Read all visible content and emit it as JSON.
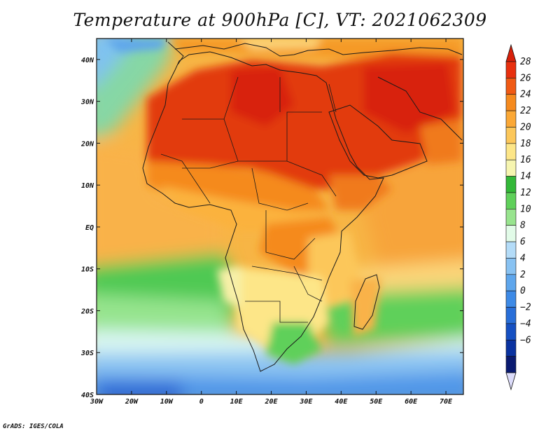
{
  "title": "Temperature at 900hPa [C], VT: 2021062309",
  "credit": "GrADS: IGES/COLA",
  "map": {
    "lon_range": [
      -30,
      75
    ],
    "lat_range": [
      -40,
      45
    ],
    "lon_ticks": [
      {
        "value": -30,
        "label": "30W"
      },
      {
        "value": -20,
        "label": "20W"
      },
      {
        "value": -10,
        "label": "10W"
      },
      {
        "value": 0,
        "label": "0"
      },
      {
        "value": 10,
        "label": "10E"
      },
      {
        "value": 20,
        "label": "20E"
      },
      {
        "value": 30,
        "label": "30E"
      },
      {
        "value": 40,
        "label": "40E"
      },
      {
        "value": 50,
        "label": "50E"
      },
      {
        "value": 60,
        "label": "60E"
      },
      {
        "value": 70,
        "label": "70E"
      }
    ],
    "lat_ticks": [
      {
        "value": 40,
        "label": "40N"
      },
      {
        "value": 30,
        "label": "30N"
      },
      {
        "value": 20,
        "label": "20N"
      },
      {
        "value": 10,
        "label": "10N"
      },
      {
        "value": 0,
        "label": "EQ"
      },
      {
        "value": -10,
        "label": "10S"
      },
      {
        "value": -20,
        "label": "20S"
      },
      {
        "value": -30,
        "label": "30S"
      },
      {
        "value": -40,
        "label": "40S"
      }
    ]
  },
  "colorbar": {
    "labels": [
      "28",
      "26",
      "24",
      "22",
      "20",
      "18",
      "16",
      "14",
      "12",
      "10",
      "8",
      "6",
      "4",
      "2",
      "0",
      "−2",
      "−4",
      "−6"
    ],
    "colors": [
      "#e8300e",
      "#f05a14",
      "#f58a1e",
      "#fba836",
      "#fcc75a",
      "#fde688",
      "#f6f5b0",
      "#33b838",
      "#5fd05a",
      "#98e48e",
      "#e2fbe8",
      "#b4dcf8",
      "#88c2f2",
      "#5ea6ec",
      "#3d8ae6",
      "#286ed8",
      "#1550c2",
      "#0a32a0",
      "#0a1a70"
    ],
    "over_color": "#d8200a",
    "under_color": "#dcdcfa"
  }
}
